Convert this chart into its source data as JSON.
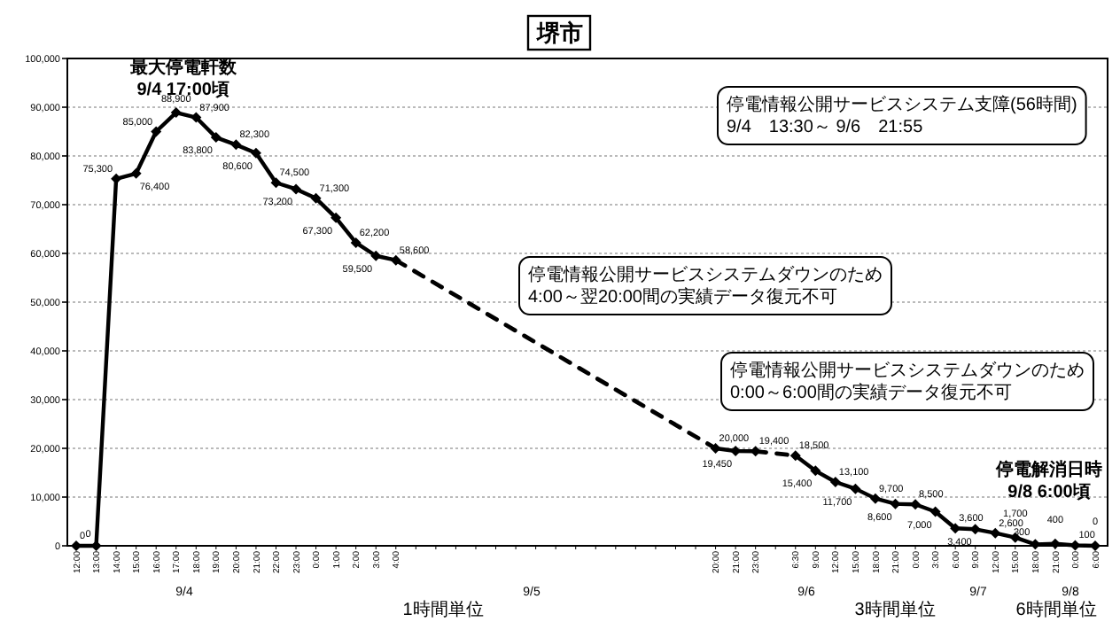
{
  "chart_data": {
    "type": "line",
    "title": "堺市",
    "categories": [
      "12:00",
      "13:00",
      "14:00",
      "15:00",
      "16:00",
      "17:00",
      "18:00",
      "19:00",
      "20:00",
      "21:00",
      "22:00",
      "23:00",
      "0:00",
      "1:00",
      "2:00",
      "3:00",
      "4:00",
      null,
      null,
      null,
      null,
      null,
      null,
      null,
      null,
      null,
      null,
      null,
      null,
      null,
      null,
      null,
      "20:00",
      "21:00",
      "23:00",
      null,
      "6:30",
      "9:00",
      "12:00",
      "15:00",
      "18:00",
      "21:00",
      "0:00",
      "3:00",
      "6:00",
      "9:00",
      "12:00",
      "15:00",
      "18:00",
      "21:00",
      "0:00",
      "6:00"
    ],
    "series": [
      {
        "color": "#000000",
        "marker": "diamond",
        "values": [
          0,
          0,
          75300,
          76400,
          85000,
          88900,
          87900,
          83800,
          82300,
          80600,
          74500,
          73200,
          71300,
          67300,
          62200,
          59500,
          58600,
          null,
          null,
          null,
          null,
          null,
          null,
          null,
          null,
          null,
          null,
          null,
          null,
          null,
          null,
          null,
          null,
          null,
          null,
          null,
          null,
          null,
          null,
          null,
          null,
          null,
          null,
          null,
          null,
          null,
          null,
          null,
          null,
          null,
          null,
          null
        ],
        "value_labels": [
          "0",
          "0",
          "75,300",
          "76,400",
          "85,000",
          "88,900",
          "87,900",
          "83,800",
          "82,300",
          "80,600",
          "74,500",
          "73,200",
          "71,300",
          "67,300",
          "62,200",
          "59,500",
          "58,600",
          null,
          null,
          null,
          null,
          null,
          null,
          null,
          null,
          null,
          null,
          null,
          null,
          null,
          null,
          null,
          null,
          null,
          null,
          null,
          null,
          null,
          null,
          null,
          null,
          null,
          null,
          null,
          null,
          null,
          null,
          null,
          null,
          null,
          null,
          null
        ]
      },
      {
        "color": "#000000",
        "marker": "diamond",
        "values": [
          null,
          null,
          null,
          null,
          null,
          null,
          null,
          null,
          null,
          null,
          null,
          null,
          null,
          null,
          null,
          null,
          null,
          null,
          null,
          null,
          null,
          null,
          null,
          null,
          null,
          null,
          null,
          null,
          null,
          null,
          null,
          null,
          20000,
          19450,
          19400,
          null,
          null,
          null,
          null,
          null,
          null,
          null,
          null,
          null,
          null,
          null,
          null,
          null,
          null,
          null,
          null,
          null
        ],
        "value_labels": [
          null,
          null,
          null,
          null,
          null,
          null,
          null,
          null,
          null,
          null,
          null,
          null,
          null,
          null,
          null,
          null,
          null,
          null,
          null,
          null,
          null,
          null,
          null,
          null,
          null,
          null,
          null,
          null,
          null,
          null,
          null,
          null,
          "20,000",
          "19,450",
          "19,400",
          null,
          null,
          null,
          null,
          null,
          null,
          null,
          null,
          null,
          null,
          null,
          null,
          null,
          null,
          null,
          null,
          null
        ]
      },
      {
        "color": "#000000",
        "marker": "diamond",
        "values": [
          null,
          null,
          null,
          null,
          null,
          null,
          null,
          null,
          null,
          null,
          null,
          null,
          null,
          null,
          null,
          null,
          null,
          null,
          null,
          null,
          null,
          null,
          null,
          null,
          null,
          null,
          null,
          null,
          null,
          null,
          null,
          null,
          null,
          null,
          null,
          null,
          18500,
          15400,
          13100,
          11700,
          9700,
          8600,
          8500,
          7000,
          3600,
          3400,
          2600,
          1700,
          300,
          400,
          100,
          0
        ],
        "value_labels": [
          null,
          null,
          null,
          null,
          null,
          null,
          null,
          null,
          null,
          null,
          null,
          null,
          null,
          null,
          null,
          null,
          null,
          null,
          null,
          null,
          null,
          null,
          null,
          null,
          null,
          null,
          null,
          null,
          null,
          null,
          null,
          null,
          null,
          null,
          null,
          null,
          "18,500",
          "15,400",
          "13,100",
          "11,700",
          "9,700",
          "8,600",
          "8,500",
          "7,000",
          "3,600",
          "3,400",
          "2,600",
          "1,700",
          "300",
          "400",
          "100",
          "0"
        ]
      },
      {
        "color": "#000000",
        "line_style": "dashed",
        "values": [
          null,
          null,
          null,
          null,
          null,
          null,
          null,
          null,
          null,
          null,
          null,
          null,
          null,
          null,
          null,
          null,
          58600,
          null,
          null,
          null,
          null,
          null,
          null,
          null,
          null,
          null,
          null,
          null,
          null,
          null,
          null,
          null,
          20000,
          null,
          null,
          null,
          null,
          null,
          null,
          null,
          null,
          null,
          null,
          null,
          null,
          null,
          null,
          null,
          null,
          null,
          null,
          null
        ]
      },
      {
        "color": "#000000",
        "line_style": "dashed",
        "values": [
          null,
          null,
          null,
          null,
          null,
          null,
          null,
          null,
          null,
          null,
          null,
          null,
          null,
          null,
          null,
          null,
          null,
          null,
          null,
          null,
          null,
          null,
          null,
          null,
          null,
          null,
          null,
          null,
          null,
          null,
          null,
          null,
          null,
          null,
          19400,
          null,
          18500,
          null,
          null,
          null,
          null,
          null,
          null,
          null,
          null,
          null,
          null,
          null,
          null,
          null,
          null,
          null
        ]
      }
    ],
    "ylim": [
      0,
      100000
    ],
    "yticks": [
      0,
      {
        "value": 10000,
        "label": "10,000"
      },
      {
        "value": 20000,
        "label": "20,000"
      },
      {
        "value": 30000,
        "label": "30,000"
      },
      {
        "value": 40000,
        "label": "40,000"
      },
      {
        "value": 50000,
        "label": "50,000"
      },
      {
        "value": 60000,
        "label": "60,000"
      },
      {
        "value": 70000,
        "label": "70,000"
      },
      {
        "value": 80000,
        "label": "80,000"
      },
      {
        "value": 90000,
        "label": "90,000"
      },
      {
        "value": 100000,
        "label": "100,000"
      }
    ],
    "grid": "y",
    "annotations": [
      "最大停電軒数\n9/4 17:00頃",
      "停電情報公開サービスシステム支障(56時間)\n9/4　13:30～ 9/6　21:55",
      "停電情報公開サービスシステムダウンのため\n4:00～翌20:00間の実績データ復元不可",
      "停電情報公開サービスシステムダウンのため\n0:00～6:00間の実績データ復元不可",
      "停電解消日時\n9/8 6:00頃",
      "9/4",
      "1時間単位",
      "9/5",
      "9/6",
      "3時間単位",
      "9/7",
      "9/8",
      "6時間単位"
    ]
  }
}
